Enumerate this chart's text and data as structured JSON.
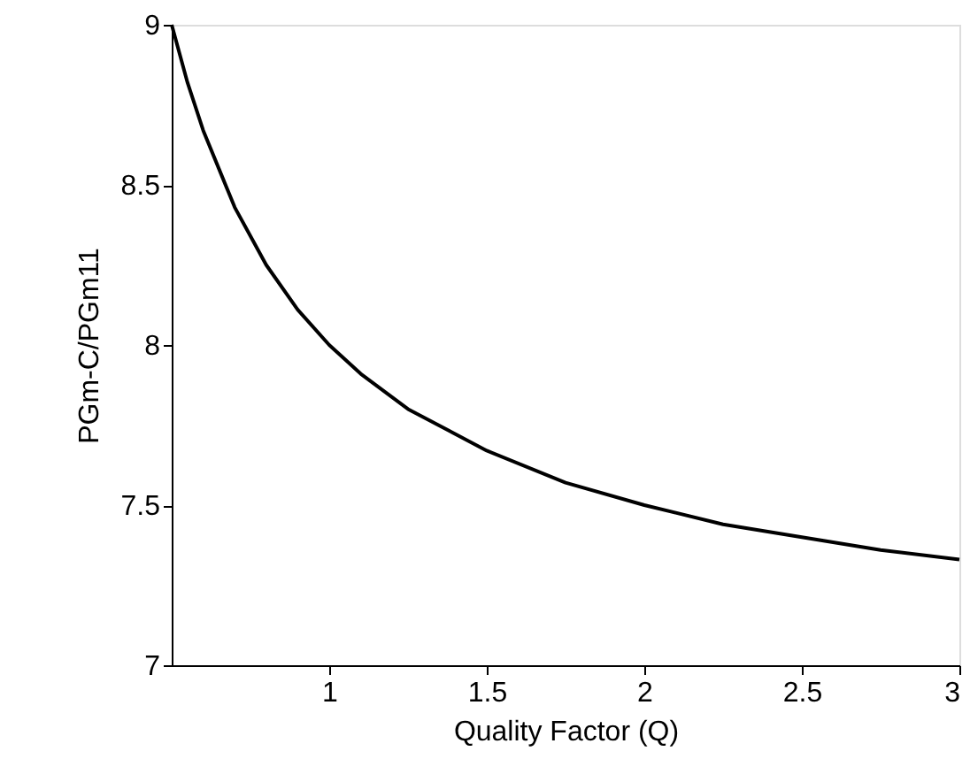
{
  "chart_data": {
    "type": "line",
    "xlabel": "Quality Factor (Q)",
    "ylabel": "PGm-C/PGm11",
    "x": [
      0.5,
      0.55,
      0.6,
      0.7,
      0.8,
      0.9,
      1.0,
      1.1,
      1.25,
      1.5,
      1.75,
      2.0,
      2.25,
      2.5,
      2.75,
      3.0
    ],
    "series": [
      {
        "color": "#000000",
        "values": [
          9.0,
          8.82,
          8.67,
          8.43,
          8.25,
          8.11,
          8.0,
          7.91,
          7.8,
          7.67,
          7.57,
          7.5,
          7.44,
          7.4,
          7.36,
          7.33
        ]
      }
    ],
    "xlim": [
      0.5,
      3
    ],
    "xticks": [
      1,
      1.5,
      2,
      2.5,
      3
    ],
    "ylim": [
      7,
      9
    ],
    "yticks": [
      7,
      7.5,
      8,
      8.5,
      9
    ],
    "grid": false,
    "marker": "none",
    "line_style": "solid"
  }
}
